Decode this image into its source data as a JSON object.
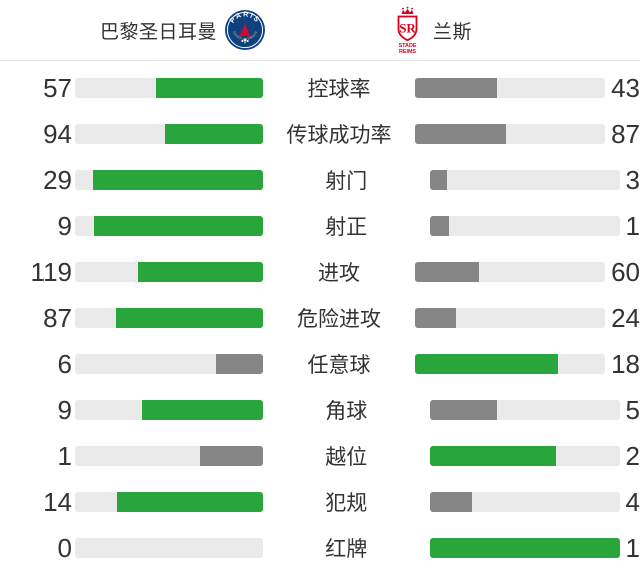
{
  "header": {
    "home_logo": {
      "icon": "psg-crest",
      "arc_text": "PARIS",
      "bottom_text": "SAINT-GERMAIN"
    },
    "away_logo": {
      "icon": "stade-reims-crest",
      "monogram": "SR",
      "line1": "STADE",
      "line2": "REIMS"
    }
  },
  "chart_data": {
    "type": "bar",
    "orientation": "horizontal-mirrored",
    "categories": [
      "控球率",
      "传球成功率",
      "射门",
      "射正",
      "进攻",
      "危险进攻",
      "任意球",
      "角球",
      "越位",
      "犯规",
      "红牌"
    ],
    "series": [
      {
        "name": "巴黎圣日耳曼",
        "values": [
          57,
          94,
          29,
          9,
          119,
          87,
          6,
          9,
          1,
          14,
          0
        ]
      },
      {
        "name": "兰斯",
        "values": [
          43,
          87,
          3,
          1,
          60,
          24,
          18,
          5,
          2,
          4,
          1
        ]
      }
    ],
    "layout": "each bar fill = value / (home+away); higher value colored green, lower gray",
    "colors": {
      "win": "#28a63c",
      "lose": "#868686",
      "track": "#eaeaea",
      "text": "#333333",
      "divider": "#e4e4e4",
      "psg_navy": "#0e4180",
      "psg_red": "#d10b2f",
      "reims_red": "#d6001c"
    }
  }
}
